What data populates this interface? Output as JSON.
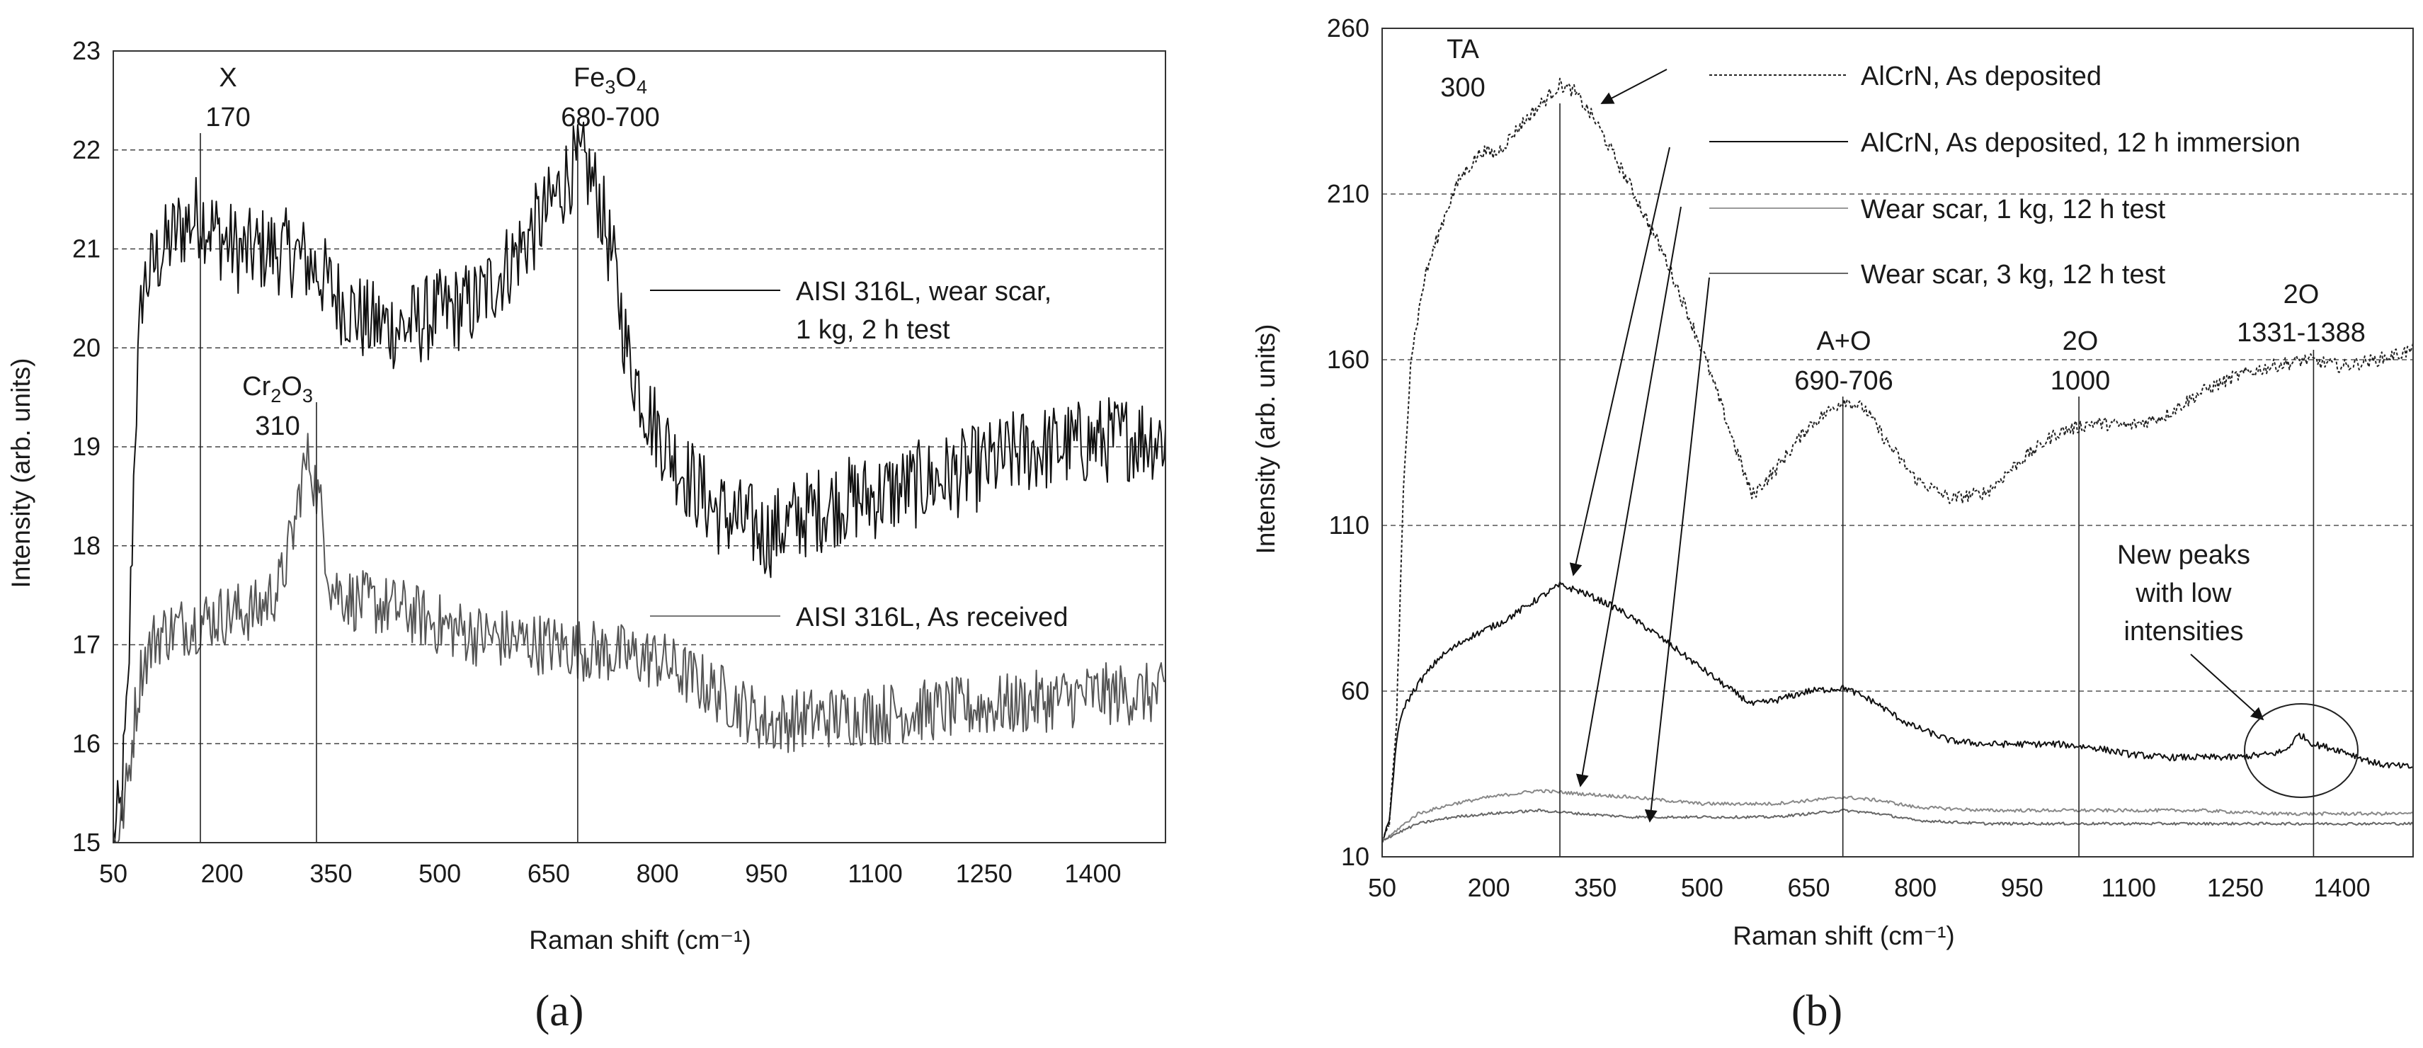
{
  "chart_data": [
    {
      "panel_label": "(a)",
      "type": "line",
      "title": "",
      "xlabel": "Raman shift (cm⁻¹)",
      "ylabel": "Intensity (arb. units)",
      "xlim": [
        50,
        1500
      ],
      "ylim": [
        15,
        23
      ],
      "xticks": [
        "50",
        "200",
        "350",
        "500",
        "650",
        "800",
        "950",
        "1100",
        "1250",
        "1400"
      ],
      "yticks": [
        "15",
        "16",
        "17",
        "18",
        "19",
        "20",
        "21",
        "22",
        "23"
      ],
      "grid": "horizontal dashed",
      "series": [
        {
          "name": "AISI 316L, wear scar, 1 kg, 2 h test",
          "legend_line1": "AISI 316L, wear scar,",
          "legend_line2": "1 kg, 2 h test",
          "color": "#111111",
          "noise": 0.45,
          "points": [
            [
              50,
              15.0
            ],
            [
              60,
              15.3
            ],
            [
              70,
              16.4
            ],
            [
              80,
              19.2
            ],
            [
              90,
              20.6
            ],
            [
              110,
              20.9
            ],
            [
              140,
              21.2
            ],
            [
              170,
              21.35
            ],
            [
              200,
              21.1
            ],
            [
              230,
              20.95
            ],
            [
              260,
              21.0
            ],
            [
              300,
              20.95
            ],
            [
              330,
              20.8
            ],
            [
              360,
              20.5
            ],
            [
              400,
              20.25
            ],
            [
              450,
              20.2
            ],
            [
              500,
              20.35
            ],
            [
              550,
              20.45
            ],
            [
              600,
              20.9
            ],
            [
              650,
              21.4
            ],
            [
              680,
              21.8
            ],
            [
              700,
              21.85
            ],
            [
              720,
              21.5
            ],
            [
              740,
              20.8
            ],
            [
              760,
              19.9
            ],
            [
              790,
              19.3
            ],
            [
              830,
              18.8
            ],
            [
              880,
              18.35
            ],
            [
              930,
              18.2
            ],
            [
              950,
              18.1
            ],
            [
              1000,
              18.3
            ],
            [
              1050,
              18.45
            ],
            [
              1100,
              18.5
            ],
            [
              1150,
              18.6
            ],
            [
              1200,
              18.7
            ],
            [
              1250,
              18.8
            ],
            [
              1300,
              18.95
            ],
            [
              1350,
              19.0
            ],
            [
              1400,
              19.05
            ],
            [
              1450,
              19.1
            ],
            [
              1500,
              19.1
            ]
          ]
        },
        {
          "name": "AISI 316L, As received",
          "legend_line1": "AISI 316L, As received",
          "color": "#555555",
          "noise": 0.32,
          "points": [
            [
              50,
              15.0
            ],
            [
              60,
              15.2
            ],
            [
              70,
              15.6
            ],
            [
              80,
              16.3
            ],
            [
              90,
              16.8
            ],
            [
              110,
              17.1
            ],
            [
              150,
              17.2
            ],
            [
              200,
              17.3
            ],
            [
              250,
              17.35
            ],
            [
              280,
              17.6
            ],
            [
              300,
              18.2
            ],
            [
              310,
              18.7
            ],
            [
              320,
              18.9
            ],
            [
              335,
              18.4
            ],
            [
              350,
              17.6
            ],
            [
              380,
              17.45
            ],
            [
              450,
              17.35
            ],
            [
              500,
              17.2
            ],
            [
              550,
              17.1
            ],
            [
              600,
              17.05
            ],
            [
              650,
              17.0
            ],
            [
              700,
              16.95
            ],
            [
              750,
              16.9
            ],
            [
              800,
              16.85
            ],
            [
              850,
              16.65
            ],
            [
              900,
              16.45
            ],
            [
              950,
              16.2
            ],
            [
              1000,
              16.25
            ],
            [
              1100,
              16.3
            ],
            [
              1200,
              16.35
            ],
            [
              1300,
              16.4
            ],
            [
              1400,
              16.5
            ],
            [
              1450,
              16.5
            ],
            [
              1500,
              16.5
            ]
          ]
        }
      ],
      "annotations": [
        {
          "line1": "X",
          "line2": "170",
          "x": 170
        },
        {
          "line1": "Fe3O4",
          "line2": "680-700",
          "x": 690
        },
        {
          "line1": "Cr2O3",
          "line2": "310",
          "x": 330
        }
      ]
    },
    {
      "panel_label": "(b)",
      "type": "line",
      "title": "",
      "xlabel": "Raman shift (cm⁻¹)",
      "ylabel": "Intensity (arb. units)",
      "xlim": [
        50,
        1500
      ],
      "ylim": [
        10,
        260
      ],
      "xticks": [
        "50",
        "200",
        "350",
        "500",
        "650",
        "800",
        "950",
        "1100",
        "1250",
        "1400"
      ],
      "yticks": [
        "10",
        "60",
        "110",
        "160",
        "210",
        "260"
      ],
      "grid": "horizontal dashed",
      "series": [
        {
          "name": "AlCrN, As deposited",
          "color": "#222222",
          "dash": "4,3",
          "noise": 2.0,
          "points": [
            [
              50,
              15
            ],
            [
              60,
              20
            ],
            [
              70,
              50
            ],
            [
              80,
              120
            ],
            [
              90,
              160
            ],
            [
              110,
              185
            ],
            [
              140,
              205
            ],
            [
              160,
              215
            ],
            [
              190,
              223
            ],
            [
              210,
              222
            ],
            [
              250,
              232
            ],
            [
              300,
              243
            ],
            [
              320,
              241
            ],
            [
              350,
              232
            ],
            [
              400,
              212
            ],
            [
              450,
              190
            ],
            [
              500,
              163
            ],
            [
              540,
              138
            ],
            [
              570,
              119
            ],
            [
              600,
              126
            ],
            [
              650,
              140
            ],
            [
              700,
              148
            ],
            [
              730,
              145
            ],
            [
              760,
              135
            ],
            [
              800,
              124
            ],
            [
              850,
              118
            ],
            [
              900,
              120
            ],
            [
              950,
              130
            ],
            [
              1000,
              138
            ],
            [
              1050,
              141
            ],
            [
              1100,
              140
            ],
            [
              1150,
              143
            ],
            [
              1200,
              150
            ],
            [
              1250,
              155
            ],
            [
              1300,
              158
            ],
            [
              1350,
              160
            ],
            [
              1400,
              158
            ],
            [
              1450,
              160
            ],
            [
              1500,
              163
            ]
          ]
        },
        {
          "name": "AlCrN, As deposited, 12 h immersion",
          "color": "#111111",
          "noise": 1.0,
          "points": [
            [
              50,
              15
            ],
            [
              60,
              20
            ],
            [
              70,
              45
            ],
            [
              80,
              55
            ],
            [
              100,
              62
            ],
            [
              130,
              70
            ],
            [
              170,
              76
            ],
            [
              220,
              81
            ],
            [
              270,
              88
            ],
            [
              300,
              92
            ],
            [
              330,
              90
            ],
            [
              380,
              85
            ],
            [
              430,
              78
            ],
            [
              480,
              70
            ],
            [
              530,
              62
            ],
            [
              570,
              56
            ],
            [
              600,
              57
            ],
            [
              650,
              60
            ],
            [
              700,
              61
            ],
            [
              740,
              57
            ],
            [
              790,
              50
            ],
            [
              850,
              45
            ],
            [
              900,
              44
            ],
            [
              950,
              44
            ],
            [
              1000,
              44
            ],
            [
              1050,
              43
            ],
            [
              1100,
              41
            ],
            [
              1150,
              40
            ],
            [
              1200,
              40
            ],
            [
              1250,
              40
            ],
            [
              1300,
              41
            ],
            [
              1320,
              42
            ],
            [
              1340,
              47
            ],
            [
              1360,
              44
            ],
            [
              1400,
              42
            ],
            [
              1450,
              38
            ],
            [
              1500,
              37
            ]
          ]
        },
        {
          "name": "Wear scar, 1 kg, 12 h test",
          "color": "#888888",
          "noise": 0.5,
          "points": [
            [
              50,
              15
            ],
            [
              60,
              16
            ],
            [
              70,
              18
            ],
            [
              100,
              23
            ],
            [
              150,
              26
            ],
            [
              200,
              28
            ],
            [
              270,
              30
            ],
            [
              330,
              29
            ],
            [
              400,
              28
            ],
            [
              450,
              27
            ],
            [
              500,
              26
            ],
            [
              600,
              26
            ],
            [
              650,
              27
            ],
            [
              700,
              28
            ],
            [
              750,
              27
            ],
            [
              800,
              25
            ],
            [
              900,
              24
            ],
            [
              1000,
              24
            ],
            [
              1100,
              24
            ],
            [
              1200,
              24
            ],
            [
              1300,
              23
            ],
            [
              1400,
              23
            ],
            [
              1500,
              23
            ]
          ]
        },
        {
          "name": "Wear scar, 3 kg, 12 h test",
          "color": "#666666",
          "noise": 0.4,
          "points": [
            [
              50,
              15
            ],
            [
              60,
              16
            ],
            [
              70,
              17
            ],
            [
              100,
              20
            ],
            [
              150,
              22
            ],
            [
              200,
              23
            ],
            [
              270,
              24
            ],
            [
              330,
              23
            ],
            [
              400,
              22
            ],
            [
              500,
              22
            ],
            [
              600,
              22
            ],
            [
              700,
              24
            ],
            [
              750,
              23
            ],
            [
              800,
              21
            ],
            [
              900,
              20
            ],
            [
              1000,
              20
            ],
            [
              1100,
              20
            ],
            [
              1200,
              20
            ],
            [
              1300,
              20
            ],
            [
              1400,
              20
            ],
            [
              1500,
              20
            ]
          ]
        }
      ],
      "annotations": [
        {
          "line1": "TA",
          "line2": "300",
          "x": 300
        },
        {
          "line1": "A+O",
          "line2": "690-706",
          "x": 698
        },
        {
          "line1": "2O",
          "line2": "1000",
          "x": 1030
        },
        {
          "line1": "2O",
          "line2": "1331-1388",
          "x": 1360
        }
      ],
      "callout": {
        "line1": "New peaks",
        "line2": "with low",
        "line3": "intensities"
      }
    }
  ]
}
